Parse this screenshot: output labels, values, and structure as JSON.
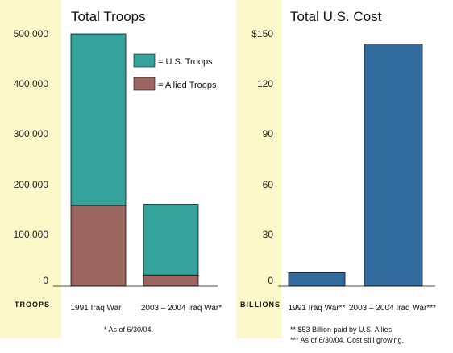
{
  "colors": {
    "us": "#36a29c",
    "allied": "#9b6660",
    "cost": "#326b9e",
    "band": "#fcf8c9",
    "edge": "#111111"
  },
  "chart_data": [
    {
      "type": "bar",
      "stacked": true,
      "title": "Total Troops",
      "ylabel": "TROOPS",
      "ylim": [
        0,
        500000
      ],
      "yticks": [
        0,
        100000,
        200000,
        300000,
        400000,
        500000
      ],
      "ytick_labels": [
        "0",
        "100,000",
        "200,000",
        "300,000",
        "400,000",
        "500,000"
      ],
      "categories": [
        "1991 Iraq War",
        "2003 – 2004 Iraq War*"
      ],
      "series": [
        {
          "name": "= Allied Troops",
          "values": [
            160000,
            22000
          ]
        },
        {
          "name": "= U.S. Troops",
          "values": [
            340000,
            140000
          ]
        }
      ],
      "legend": "top-right",
      "footnotes": [
        "* As of 6/30/04."
      ]
    },
    {
      "type": "bar",
      "title": "Total U.S. Cost",
      "ylabel": "BILLIONS",
      "ylim": [
        0,
        150
      ],
      "yticks": [
        0,
        30,
        60,
        90,
        120,
        150
      ],
      "ytick_labels": [
        "0",
        "30",
        "60",
        "90",
        "120",
        "$150"
      ],
      "categories": [
        "1991 Iraq War**",
        "2003 – 2004 Iraq War***"
      ],
      "values": [
        8,
        144
      ],
      "footnotes": [
        "**   $53 Billion paid by U.S. Allies.",
        "*** As of 6/30/04. Cost still growing."
      ]
    }
  ]
}
